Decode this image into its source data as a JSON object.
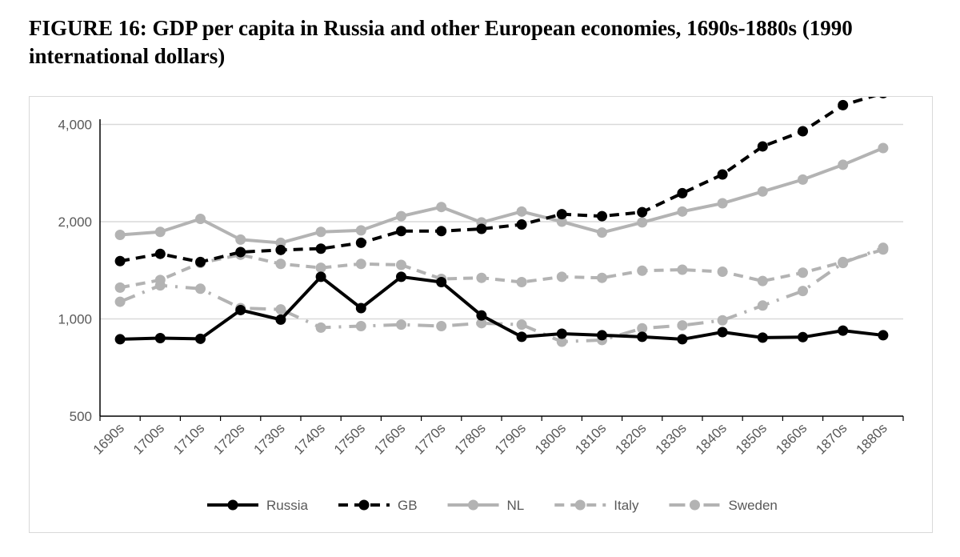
{
  "figure": {
    "title": "FIGURE 16: GDP per capita in Russia and other European economies, 1690s-1880s (1990 international dollars)"
  },
  "colors": {
    "black": "#000000",
    "gray": "#b3b3b3",
    "grid": "#d9d9d9",
    "tick_text": "#595959"
  },
  "chart_data": {
    "type": "line",
    "title": "",
    "xlabel": "",
    "ylabel": "",
    "y_scale": "log",
    "ylim": [
      500,
      4600
    ],
    "y_ticks": [
      500,
      1000,
      2000,
      4000
    ],
    "y_tick_labels": [
      "500",
      "1,000",
      "2,000",
      "4,000"
    ],
    "grid": "horizontal",
    "legend_position": "bottom",
    "categories": [
      "1690s",
      "1700s",
      "1710s",
      "1720s",
      "1730s",
      "1740s",
      "1750s",
      "1760s",
      "1770s",
      "1780s",
      "1790s",
      "1800s",
      "1810s",
      "1820s",
      "1830s",
      "1840s",
      "1850s",
      "1860s",
      "1870s",
      "1880s"
    ],
    "series": [
      {
        "name": "Russia",
        "style": "solid",
        "color": "#000000",
        "values": [
          865,
          872,
          868,
          1065,
          995,
          1350,
          1080,
          1350,
          1300,
          1025,
          880,
          900,
          890,
          880,
          865,
          910,
          875,
          878,
          920,
          890
        ]
      },
      {
        "name": "GB",
        "style": "dash",
        "color": "#000000",
        "values": [
          1510,
          1590,
          1500,
          1610,
          1635,
          1650,
          1720,
          1870,
          1870,
          1900,
          1960,
          2110,
          2080,
          2140,
          2450,
          2800,
          3420,
          3810,
          4590,
          5000
        ]
      },
      {
        "name": "NL",
        "style": "solid",
        "color": "#b3b3b3",
        "values": [
          1820,
          1860,
          2040,
          1760,
          1720,
          1860,
          1880,
          2080,
          2220,
          1990,
          2150,
          2000,
          1850,
          1990,
          2150,
          2280,
          2480,
          2700,
          3000,
          3380
        ]
      },
      {
        "name": "Italy",
        "style": "dash",
        "color": "#b3b3b3",
        "values": [
          1250,
          1320,
          1490,
          1580,
          1480,
          1440,
          1480,
          1470,
          1330,
          1340,
          1300,
          1350,
          1340,
          1410,
          1420,
          1400,
          1310,
          1390,
          1500,
          1640
        ]
      },
      {
        "name": "Sweden",
        "style": "dashdot",
        "color": "#b3b3b3",
        "values": [
          1130,
          1270,
          1240,
          1080,
          1070,
          940,
          950,
          960,
          950,
          970,
          960,
          850,
          860,
          935,
          955,
          990,
          1100,
          1220,
          1490,
          1660
        ]
      }
    ]
  }
}
